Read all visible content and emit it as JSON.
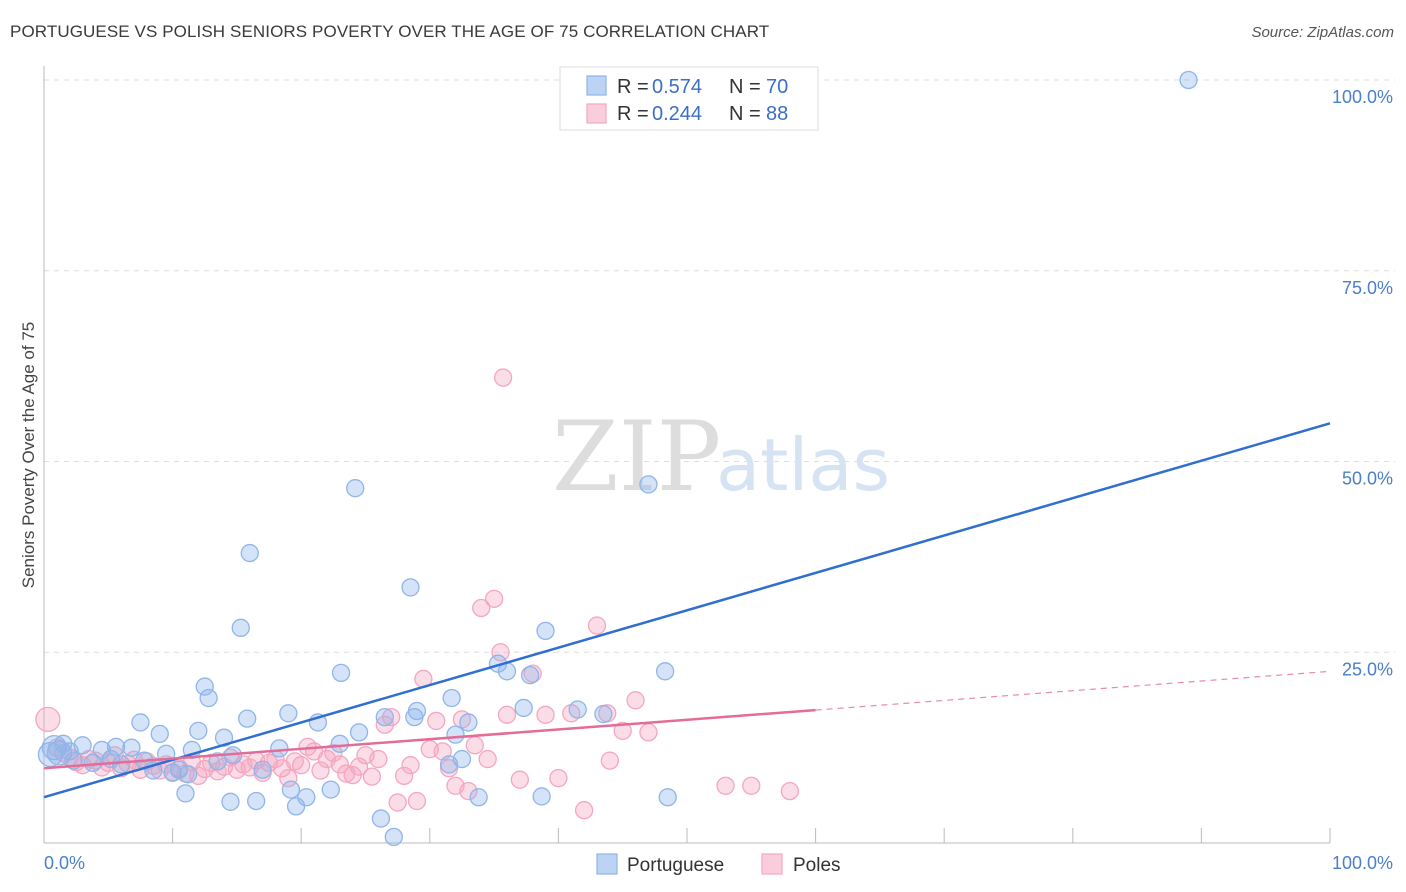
{
  "header": {
    "title": "PORTUGUESE VS POLISH SENIORS POVERTY OVER THE AGE OF 75 CORRELATION CHART",
    "source": "Source: ZipAtlas.com"
  },
  "watermark": {
    "zip": "ZIP",
    "atlas": "atlas"
  },
  "chart_data": {
    "type": "scatter",
    "title": "PORTUGUESE VS POLISH SENIORS POVERTY OVER THE AGE OF 75 CORRELATION CHART",
    "ylabel": "Seniors Poverty Over the Age of 75",
    "xlabel": "",
    "xlim": [
      0,
      100
    ],
    "ylim": [
      0,
      100
    ],
    "x_tick_labels": [
      "0.0%",
      "100.0%"
    ],
    "y_tick_labels": [
      "100.0%",
      "75.0%",
      "50.0%",
      "25.0%"
    ],
    "y_tick_values": [
      100,
      75,
      50,
      25
    ],
    "grid": true,
    "legend_position": "top-center",
    "stats": [
      {
        "r_label": "R =",
        "r_value": "0.574",
        "n_label": "N =",
        "n_value": "70"
      },
      {
        "r_label": "R =",
        "r_value": "0.244",
        "n_label": "N =",
        "n_value": "88"
      }
    ],
    "series": [
      {
        "name": "Portuguese",
        "color": "#8fb5ea",
        "line_color": "#2f6fcf",
        "trend": {
          "x0": 0,
          "y0": 6,
          "x1": 100,
          "y1": 55,
          "dash_from": null
        },
        "points": [
          [
            0.5,
            11.6
          ],
          [
            0.8,
            12.5
          ],
          [
            1.2,
            11.8
          ],
          [
            1.5,
            13
          ],
          [
            2,
            12
          ],
          [
            2.3,
            10.8
          ],
          [
            3,
            12.8
          ],
          [
            3.8,
            10.5
          ],
          [
            4.5,
            12.2
          ],
          [
            5.2,
            11
          ],
          [
            5.6,
            12.6
          ],
          [
            6,
            10.3
          ],
          [
            6.8,
            12.5
          ],
          [
            7.5,
            15.8
          ],
          [
            7.8,
            10.8
          ],
          [
            8.5,
            9.5
          ],
          [
            9,
            14.3
          ],
          [
            9.5,
            11.7
          ],
          [
            10,
            9.2
          ],
          [
            10.5,
            9.6
          ],
          [
            11,
            6.5
          ],
          [
            11.2,
            9
          ],
          [
            11.5,
            12.2
          ],
          [
            12,
            14.7
          ],
          [
            12.5,
            20.5
          ],
          [
            12.8,
            19
          ],
          [
            13.5,
            10.7
          ],
          [
            14,
            13.8
          ],
          [
            14.5,
            5.4
          ],
          [
            14.7,
            11.5
          ],
          [
            15.3,
            28.2
          ],
          [
            15.8,
            16.3
          ],
          [
            16,
            38
          ],
          [
            16.5,
            5.5
          ],
          [
            17,
            9.6
          ],
          [
            18.3,
            12.4
          ],
          [
            19,
            17
          ],
          [
            19.2,
            7
          ],
          [
            19.6,
            4.8
          ],
          [
            20.4,
            6
          ],
          [
            21.3,
            15.8
          ],
          [
            22.3,
            7
          ],
          [
            23,
            13
          ],
          [
            23.1,
            22.3
          ],
          [
            24.2,
            46.5
          ],
          [
            24.5,
            14.5
          ],
          [
            26.2,
            3.2
          ],
          [
            27.2,
            0.8
          ],
          [
            28.5,
            33.5
          ],
          [
            28.8,
            16.5
          ],
          [
            29,
            17.3
          ],
          [
            31.5,
            10.3
          ],
          [
            31.7,
            19
          ],
          [
            32.5,
            11
          ],
          [
            33,
            15.8
          ],
          [
            33.8,
            6
          ],
          [
            35.3,
            23.5
          ],
          [
            36,
            22.5
          ],
          [
            37.3,
            17.7
          ],
          [
            37.8,
            22
          ],
          [
            38.7,
            6.1
          ],
          [
            39,
            27.8
          ],
          [
            41.5,
            17.5
          ],
          [
            43.5,
            16.9
          ],
          [
            47,
            47
          ],
          [
            48.3,
            22.5
          ],
          [
            48.5,
            6
          ],
          [
            89,
            100
          ],
          [
            32,
            14.2
          ],
          [
            26.5,
            16.5
          ]
        ]
      },
      {
        "name": "Poles",
        "color": "#f4a6c0",
        "line_color": "#e36c98",
        "trend": {
          "x0": 0,
          "y0": 9.8,
          "x1": 100,
          "y1": 22.5,
          "dash_from": 60
        },
        "points": [
          [
            0.3,
            16.2
          ],
          [
            1,
            12.5
          ],
          [
            1.5,
            11.8
          ],
          [
            2,
            11.2
          ],
          [
            2.5,
            10.6
          ],
          [
            3,
            10.2
          ],
          [
            3.5,
            11
          ],
          [
            4,
            10.8
          ],
          [
            4.5,
            9.9
          ],
          [
            5,
            10.5
          ],
          [
            5.5,
            11.5
          ],
          [
            6,
            9.8
          ],
          [
            6.5,
            10.4
          ],
          [
            7,
            10.9
          ],
          [
            7.5,
            9.6
          ],
          [
            8,
            10.7
          ],
          [
            8.5,
            10.1
          ],
          [
            9,
            9.5
          ],
          [
            9.5,
            10.3
          ],
          [
            10,
            9.3
          ],
          [
            10.5,
            9.8
          ],
          [
            11,
            9.1
          ],
          [
            11.5,
            10.6
          ],
          [
            12,
            8.8
          ],
          [
            12.5,
            9.7
          ],
          [
            13,
            10.5
          ],
          [
            13.5,
            9.4
          ],
          [
            14,
            10
          ],
          [
            14.5,
            11.2
          ],
          [
            15,
            9.6
          ],
          [
            15.5,
            10.3
          ],
          [
            16,
            9.9
          ],
          [
            16.5,
            10.8
          ],
          [
            17,
            9.2
          ],
          [
            17.5,
            10.5
          ],
          [
            18,
            11
          ],
          [
            18.5,
            9.8
          ],
          [
            19,
            8.5
          ],
          [
            19.5,
            10.7
          ],
          [
            20,
            10.2
          ],
          [
            20.5,
            12.6
          ],
          [
            21,
            12
          ],
          [
            21.5,
            9.5
          ],
          [
            22,
            11
          ],
          [
            22.5,
            11.8
          ],
          [
            23,
            10.3
          ],
          [
            23.5,
            9.1
          ],
          [
            24,
            8.9
          ],
          [
            24.5,
            10
          ],
          [
            25,
            11.5
          ],
          [
            25.5,
            8.7
          ],
          [
            26,
            11
          ],
          [
            26.5,
            15.5
          ],
          [
            27,
            16.5
          ],
          [
            27.5,
            5.3
          ],
          [
            28,
            8.8
          ],
          [
            28.5,
            10.2
          ],
          [
            29,
            5.5
          ],
          [
            29.5,
            21.5
          ],
          [
            30,
            12.3
          ],
          [
            30.5,
            16
          ],
          [
            31,
            12
          ],
          [
            31.5,
            9.8
          ],
          [
            32,
            7.5
          ],
          [
            32.5,
            16.2
          ],
          [
            33,
            6.8
          ],
          [
            33.5,
            12.8
          ],
          [
            34,
            30.8
          ],
          [
            34.5,
            11
          ],
          [
            35,
            32
          ],
          [
            35.5,
            25
          ],
          [
            36,
            16.8
          ],
          [
            37,
            8.3
          ],
          [
            38,
            22.2
          ],
          [
            39,
            16.8
          ],
          [
            40,
            8.5
          ],
          [
            41,
            17
          ],
          [
            42,
            4.3
          ],
          [
            43,
            28.5
          ],
          [
            44,
            10.8
          ],
          [
            45,
            14.7
          ],
          [
            46,
            18.7
          ],
          [
            47,
            14.5
          ],
          [
            53,
            7.5
          ],
          [
            55,
            7.5
          ],
          [
            58,
            6.8
          ],
          [
            35.7,
            61
          ],
          [
            43.8,
            17
          ]
        ]
      }
    ]
  },
  "bottom_legend": {
    "items": [
      {
        "label": "Portuguese",
        "color": "#8fb5ea"
      },
      {
        "label": "Poles",
        "color": "#f4a6c0"
      }
    ]
  }
}
